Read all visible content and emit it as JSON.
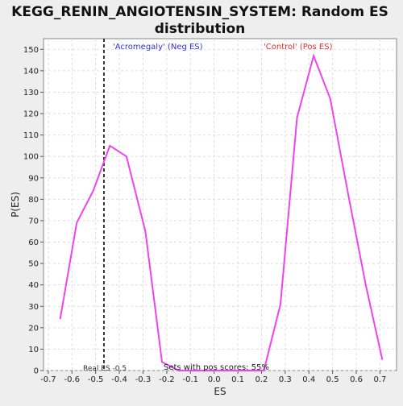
{
  "chart_data": {
    "type": "line",
    "title": "KEGG_RENIN_ANGIOTENSIN_SYSTEM: Random ES distribution",
    "title_lines": [
      "KEGG_RENIN_ANGIOTENSIN_SYSTEM: Random ES",
      "distribution"
    ],
    "xlabel": "ES",
    "ylabel": "P(ES)",
    "xlim": [
      -0.72,
      0.77
    ],
    "ylim": [
      0,
      155
    ],
    "xticks": [
      -0.7,
      -0.6,
      -0.5,
      -0.4,
      -0.3,
      -0.2,
      -0.1,
      0.0,
      0.1,
      0.2,
      0.3,
      0.4,
      0.5,
      0.6,
      0.7
    ],
    "xtick_labels": [
      "-0.7",
      "-0.6",
      "-0.5",
      "-0.4",
      "-0.3",
      "-0.2",
      "-0.1",
      "0.0",
      "0.1",
      "0.2",
      "0.3",
      "0.4",
      "0.5",
      "0.6",
      "0.7"
    ],
    "yticks": [
      0,
      10,
      20,
      30,
      40,
      50,
      60,
      70,
      80,
      90,
      100,
      110,
      120,
      130,
      140,
      150
    ],
    "ytick_labels": [
      "0",
      "10",
      "20",
      "30",
      "40",
      "50",
      "60",
      "70",
      "80",
      "90",
      "100",
      "110",
      "120",
      "130",
      "140",
      "150"
    ],
    "grid": true,
    "series": [
      {
        "color": "#ee44ee",
        "x": [
          -0.65,
          -0.58,
          -0.51,
          -0.44,
          -0.37,
          -0.29,
          -0.22,
          -0.15,
          -0.08,
          0.0,
          0.07,
          0.14,
          0.21,
          0.28,
          0.35,
          0.42,
          0.49,
          0.57,
          0.64,
          0.71
        ],
        "y": [
          24,
          69,
          84,
          105,
          100,
          65,
          4,
          0,
          0,
          0,
          0,
          0,
          0,
          31,
          118,
          147,
          127,
          80,
          40,
          5
        ]
      }
    ],
    "reference_line": {
      "x": -0.465,
      "label": "Real ES -0.5",
      "color": "#333333"
    },
    "annotations": {
      "neg_label": "'Acromegaly' (Neg ES)",
      "neg_color": "#3333cc",
      "pos_label": "'Control' (Pos ES)",
      "pos_color": "#dd3333",
      "pos_scores": "Sets with pos scores: 55%"
    }
  }
}
